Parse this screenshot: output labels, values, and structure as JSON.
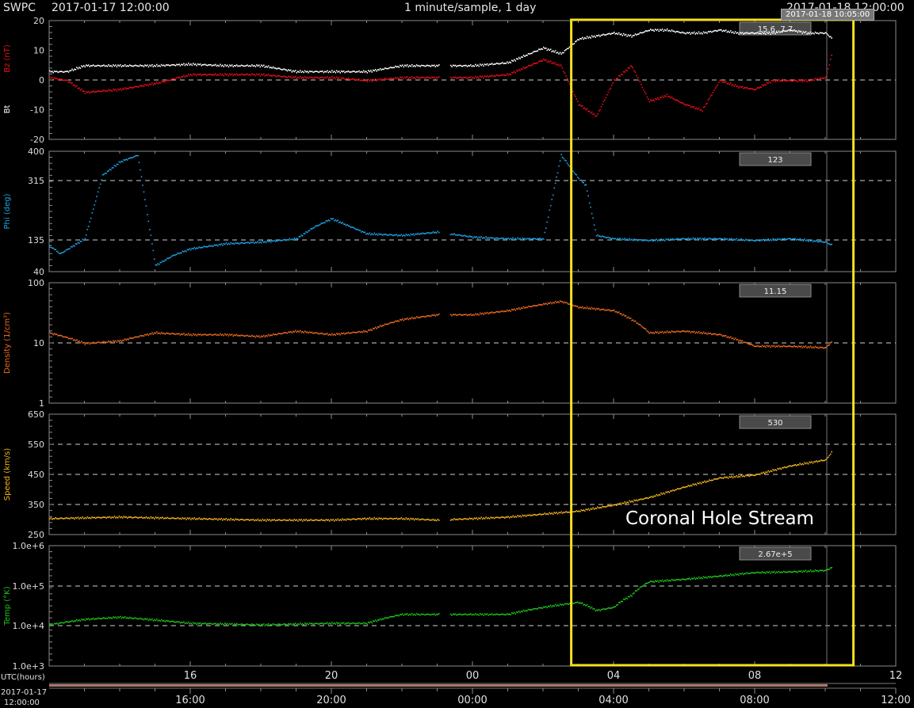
{
  "header": {
    "source": "SWPC",
    "start": "2017-01-17 12:00:00",
    "cadence": "1 minute/sample, 1 day",
    "end": "2017-01-18 12:00:00",
    "cursor_time": "2017-01-18 10:05:00"
  },
  "annotation": {
    "label": "Coronal Hole Stream",
    "box_color": "#f5e11f",
    "x_start": 26.8,
    "x_end": 34.8
  },
  "bottom_axis": {
    "utc_label": "UTC(hours)",
    "start_date": "2017-01-17",
    "start_time": "12:00:00",
    "panel_ticks": [
      "16",
      "20",
      "00",
      "04",
      "08",
      "12"
    ],
    "timeline_ticks": [
      "16:00",
      "20:00",
      "00:00",
      "04:00",
      "08:00",
      "12:00"
    ]
  },
  "chart_data": [
    {
      "type": "scatter",
      "ylabel": "Bz (nT)",
      "ylabel2": "Bt",
      "yticks": [
        "20",
        "10",
        "0",
        "-10",
        "-20"
      ],
      "ylim": [
        -20,
        20
      ],
      "readout": "15.6, 7.7",
      "colors": {
        "Bt": "#ffffff",
        "Bz": "#e8101a"
      },
      "x": [
        12,
        12.5,
        13,
        14,
        15,
        16,
        17,
        18,
        19,
        20,
        21,
        22,
        23,
        24,
        25,
        26,
        26.5,
        27,
        27.5,
        28,
        28.5,
        29,
        29.5,
        30,
        30.5,
        31,
        31.5,
        32,
        32.5,
        33,
        33.5,
        34,
        34.2
      ],
      "series": [
        {
          "name": "Bt",
          "values": [
            3,
            3,
            5,
            5,
            5,
            5.5,
            5,
            5,
            3,
            3,
            3,
            5,
            5,
            5,
            6,
            11,
            9,
            14,
            15,
            16,
            15,
            17,
            17,
            16,
            16,
            17,
            16,
            16,
            16,
            17,
            16,
            16,
            14
          ]
        },
        {
          "name": "Bz",
          "values": [
            1,
            0,
            -4,
            -3,
            -1,
            2,
            2,
            2,
            1,
            1,
            0,
            1,
            1,
            1,
            2,
            7,
            5,
            -8,
            -12,
            0,
            5,
            -7,
            -5,
            -8,
            -10,
            0,
            -2,
            -3,
            0,
            0,
            0,
            1,
            10
          ]
        }
      ]
    },
    {
      "type": "scatter",
      "ylabel": "Phi (deg)",
      "yticks": [
        "400",
        "315",
        "135",
        "40"
      ],
      "ylim": [
        40,
        400
      ],
      "readout": "123",
      "colors": {
        "Phi": "#1fa4e6"
      },
      "x": [
        12,
        12.3,
        13,
        13.5,
        14,
        14.5,
        15,
        15.5,
        16,
        17,
        18,
        19,
        19.5,
        20,
        21,
        22,
        23,
        24,
        25,
        26,
        26.5,
        27,
        27.2,
        27.5,
        28,
        29,
        30,
        31,
        32,
        33,
        34,
        34.2
      ],
      "series": [
        {
          "name": "Phi",
          "values": [
            120,
            95,
            140,
            330,
            370,
            390,
            60,
            90,
            110,
            125,
            130,
            140,
            175,
            200,
            155,
            150,
            160,
            145,
            140,
            140,
            390,
            320,
            300,
            150,
            140,
            135,
            140,
            140,
            135,
            140,
            130,
            120
          ]
        }
      ]
    },
    {
      "type": "scatter",
      "ylabel": "Density (1/cm³)",
      "yticks": [
        "100",
        "10",
        "1"
      ],
      "ylim": [
        1,
        100
      ],
      "yscale": "log",
      "readout": "11.15",
      "colors": {
        "Density": "#ef6a1e"
      },
      "x": [
        12,
        13,
        14,
        15,
        16,
        17,
        18,
        19,
        20,
        21,
        22,
        23,
        24,
        25,
        26,
        26.5,
        27,
        28,
        29,
        30,
        31,
        32,
        33,
        34,
        34.2
      ],
      "series": [
        {
          "name": "Density",
          "values": [
            15,
            10,
            11,
            15,
            14,
            14,
            13,
            16,
            14,
            16,
            25,
            30,
            30,
            35,
            45,
            50,
            40,
            35,
            15,
            16,
            14,
            9,
            9,
            8.5,
            11
          ]
        }
      ]
    },
    {
      "type": "scatter",
      "ylabel": "Speed (km/s)",
      "yticks": [
        "650",
        "550",
        "450",
        "350",
        "250"
      ],
      "ylim": [
        250,
        650
      ],
      "readout": "530",
      "colors": {
        "Speed": "#f2b51c"
      },
      "x": [
        12,
        14,
        16,
        18,
        20,
        21,
        22,
        23,
        24,
        25,
        26,
        27,
        28,
        29,
        30,
        31,
        32,
        33,
        34,
        34.2
      ],
      "series": [
        {
          "name": "Speed",
          "values": [
            305,
            310,
            305,
            300,
            300,
            305,
            305,
            300,
            305,
            310,
            320,
            330,
            350,
            375,
            410,
            440,
            450,
            480,
            500,
            530
          ]
        }
      ]
    },
    {
      "type": "scatter",
      "ylabel": "Temp (°K)",
      "yticks": [
        "1.0e+6",
        "1.0e+5",
        "1.0e+4",
        "1.0e+3"
      ],
      "ylim": [
        1000,
        1000000
      ],
      "yscale": "log",
      "readout": "2.67e+5",
      "colors": {
        "Temp": "#20c41c"
      },
      "x": [
        12,
        13,
        14,
        16,
        18,
        20,
        21,
        22,
        23,
        24,
        25,
        26,
        27,
        27.5,
        28,
        28.5,
        29,
        30,
        31,
        32,
        33,
        34,
        34.2
      ],
      "series": [
        {
          "name": "Temp",
          "values": [
            11000,
            15000,
            17000,
            12000,
            11000,
            12000,
            12000,
            20000,
            20000,
            20000,
            20000,
            30000,
            40000,
            25000,
            30000,
            60000,
            130000,
            150000,
            180000,
            220000,
            230000,
            250000,
            300000
          ]
        }
      ]
    }
  ]
}
